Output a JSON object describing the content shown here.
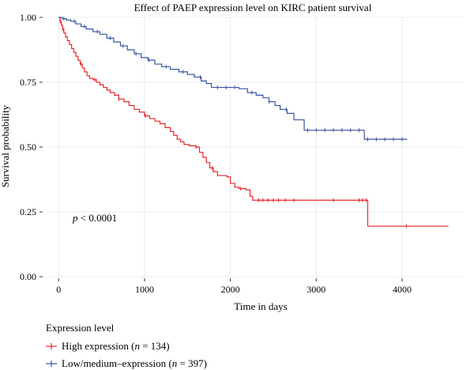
{
  "chart_data": {
    "type": "line",
    "title": "Effect of PAEP expression level on KIRC patient survival",
    "xlabel": "Time in days",
    "ylabel": "Survival probability",
    "xlim": [
      -150,
      4700
    ],
    "ylim": [
      0,
      1
    ],
    "x_ticks": [
      "0",
      "1000",
      "2000",
      "3000",
      "4000"
    ],
    "y_ticks": [
      "0.00",
      "0.25",
      "0.50",
      "0.75",
      "1.00"
    ],
    "annotation_p": "p",
    "annotation_rest": " < 0.0001",
    "legend": {
      "title": "Expression level",
      "position": "bottom-left"
    },
    "series": [
      {
        "name_prefix": "High expression (",
        "name_n": "n",
        "name_suffix": " = 134)",
        "color": "#e8262a",
        "steps": [
          [
            0,
            1.0
          ],
          [
            15,
            0.985
          ],
          [
            30,
            0.97
          ],
          [
            45,
            0.955
          ],
          [
            60,
            0.94
          ],
          [
            80,
            0.925
          ],
          [
            100,
            0.91
          ],
          [
            125,
            0.895
          ],
          [
            150,
            0.88
          ],
          [
            175,
            0.865
          ],
          [
            200,
            0.85
          ],
          [
            225,
            0.835
          ],
          [
            250,
            0.82
          ],
          [
            275,
            0.805
          ],
          [
            300,
            0.79
          ],
          [
            330,
            0.775
          ],
          [
            360,
            0.765
          ],
          [
            400,
            0.76
          ],
          [
            440,
            0.75
          ],
          [
            480,
            0.74
          ],
          [
            520,
            0.73
          ],
          [
            560,
            0.72
          ],
          [
            600,
            0.71
          ],
          [
            650,
            0.7
          ],
          [
            700,
            0.685
          ],
          [
            760,
            0.675
          ],
          [
            820,
            0.66
          ],
          [
            880,
            0.645
          ],
          [
            940,
            0.635
          ],
          [
            1000,
            0.62
          ],
          [
            1060,
            0.61
          ],
          [
            1120,
            0.6
          ],
          [
            1180,
            0.59
          ],
          [
            1240,
            0.575
          ],
          [
            1300,
            0.56
          ],
          [
            1340,
            0.545
          ],
          [
            1380,
            0.53
          ],
          [
            1420,
            0.52
          ],
          [
            1460,
            0.51
          ],
          [
            1520,
            0.505
          ],
          [
            1600,
            0.5
          ],
          [
            1640,
            0.48
          ],
          [
            1680,
            0.46
          ],
          [
            1720,
            0.44
          ],
          [
            1760,
            0.42
          ],
          [
            1800,
            0.405
          ],
          [
            1850,
            0.39
          ],
          [
            1960,
            0.385
          ],
          [
            2000,
            0.36
          ],
          [
            2050,
            0.345
          ],
          [
            2100,
            0.34
          ],
          [
            2180,
            0.335
          ],
          [
            2230,
            0.31
          ],
          [
            2260,
            0.295
          ],
          [
            3600,
            0.195
          ],
          [
            4540,
            0.195
          ]
        ],
        "censors": [
          20,
          50,
          260,
          420,
          700,
          1010,
          1600,
          1790,
          2120,
          2330,
          2380,
          2440,
          2500,
          2560,
          2640,
          2740,
          3200,
          3500,
          3540,
          3580,
          4050
        ]
      },
      {
        "name_prefix": "Low/medium–expression (",
        "name_n": "n",
        "name_suffix": " = 397)",
        "color": "#3b54a4",
        "steps": [
          [
            0,
            1.0
          ],
          [
            40,
            0.995
          ],
          [
            90,
            0.99
          ],
          [
            140,
            0.985
          ],
          [
            200,
            0.975
          ],
          [
            260,
            0.965
          ],
          [
            320,
            0.955
          ],
          [
            400,
            0.945
          ],
          [
            480,
            0.935
          ],
          [
            560,
            0.92
          ],
          [
            640,
            0.905
          ],
          [
            720,
            0.89
          ],
          [
            800,
            0.875
          ],
          [
            880,
            0.86
          ],
          [
            960,
            0.845
          ],
          [
            1040,
            0.835
          ],
          [
            1120,
            0.82
          ],
          [
            1200,
            0.81
          ],
          [
            1300,
            0.8
          ],
          [
            1400,
            0.79
          ],
          [
            1500,
            0.78
          ],
          [
            1580,
            0.77
          ],
          [
            1660,
            0.755
          ],
          [
            1720,
            0.745
          ],
          [
            1780,
            0.73
          ],
          [
            2100,
            0.725
          ],
          [
            2200,
            0.71
          ],
          [
            2300,
            0.7
          ],
          [
            2380,
            0.69
          ],
          [
            2450,
            0.675
          ],
          [
            2520,
            0.66
          ],
          [
            2580,
            0.645
          ],
          [
            2660,
            0.63
          ],
          [
            2740,
            0.605
          ],
          [
            2860,
            0.565
          ],
          [
            3560,
            0.53
          ],
          [
            4060,
            0.53
          ]
        ],
        "censors": [
          60,
          180,
          300,
          450,
          600,
          750,
          900,
          1050,
          1250,
          1450,
          1650,
          1850,
          1950,
          2050,
          2250,
          2450,
          2650,
          2900,
          3000,
          3100,
          3200,
          3300,
          3400,
          3500,
          3600,
          3700,
          3800,
          3900,
          4000
        ]
      }
    ]
  }
}
